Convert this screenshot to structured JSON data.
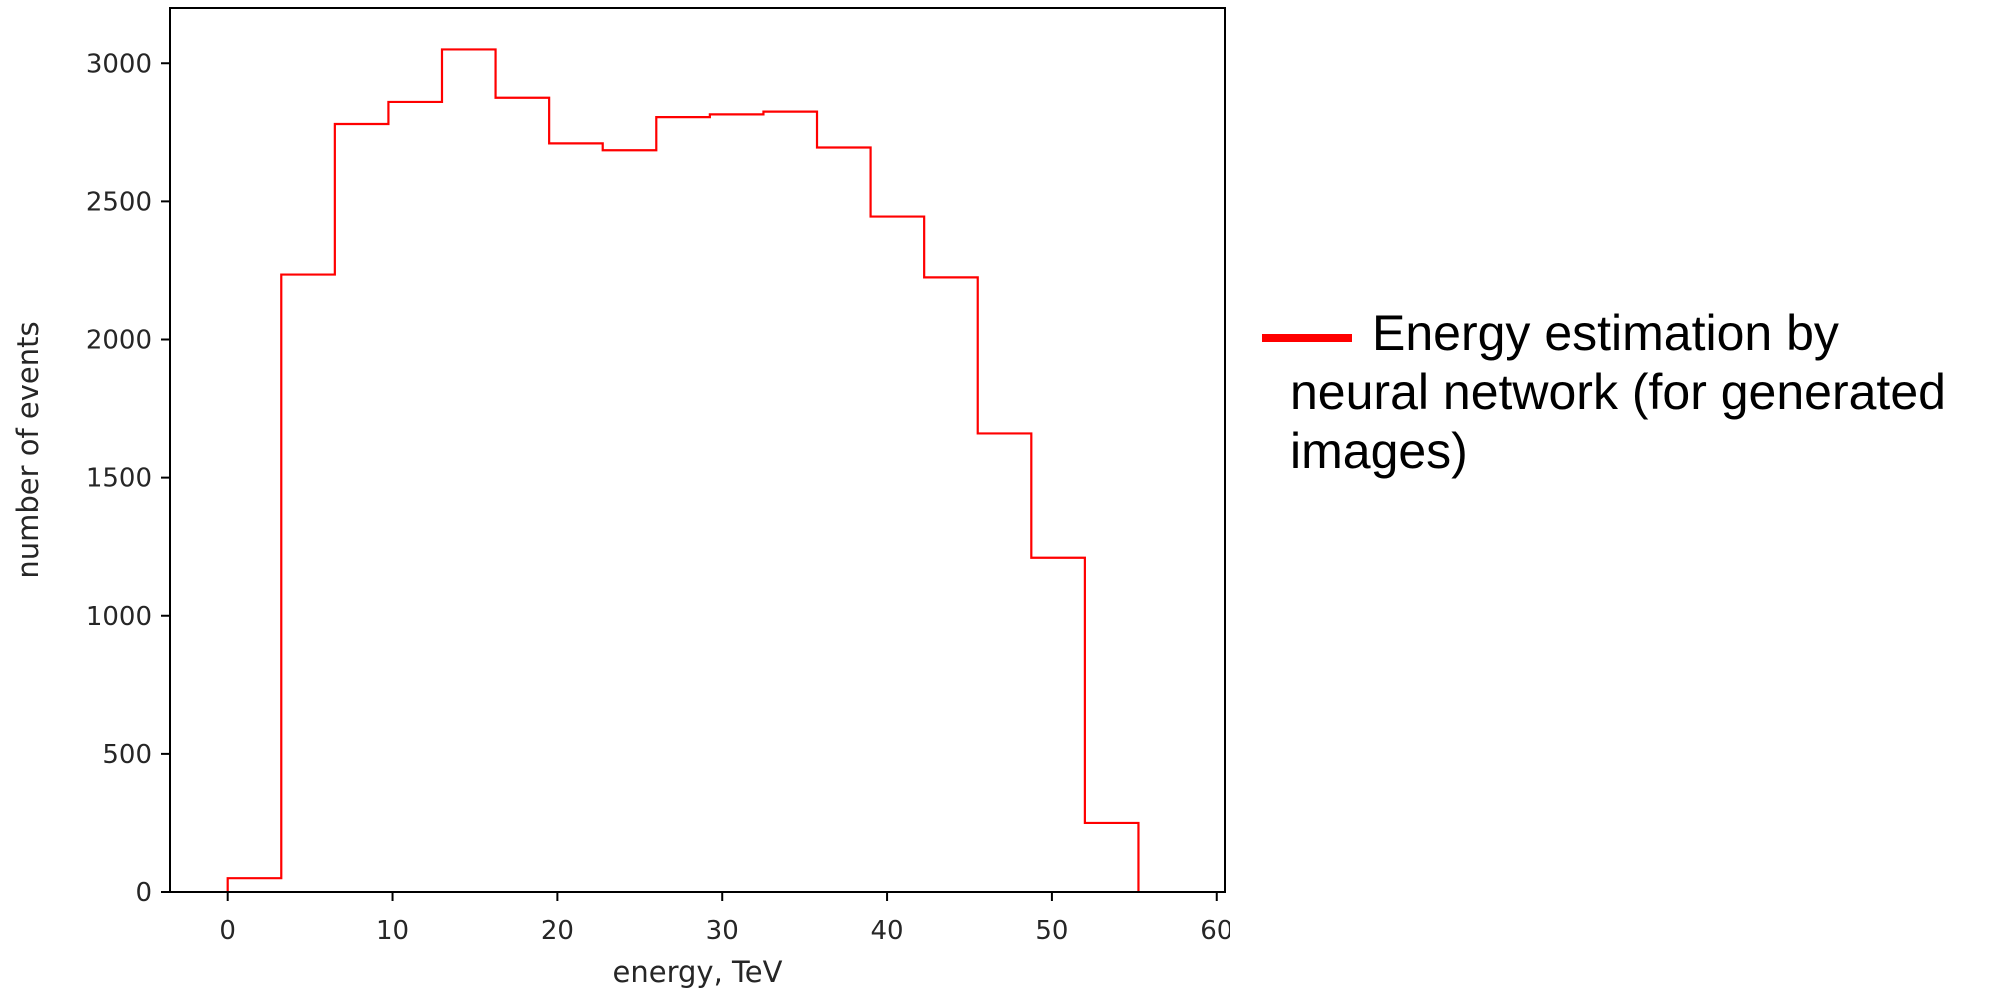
{
  "chart_data": {
    "type": "histogram",
    "title": "",
    "xlabel": "energy, TeV",
    "ylabel": "number of events",
    "xlim": [
      -3.5,
      60.5
    ],
    "ylim": [
      0,
      3200
    ],
    "xticks": [
      0,
      10,
      20,
      30,
      40,
      50,
      60
    ],
    "yticks": [
      0,
      500,
      1000,
      1500,
      2000,
      2500,
      3000
    ],
    "grid": false,
    "legend_position": "right",
    "series": [
      {
        "name": "Energy estimation by neural network (for generated images)",
        "color": "#ff0000",
        "bin_edges": [
          0,
          3.25,
          6.5,
          9.75,
          13,
          16.25,
          19.5,
          22.75,
          26,
          29.25,
          32.5,
          35.75,
          39,
          42.25,
          45.5,
          48.75,
          52,
          55.25
        ],
        "counts": [
          50,
          2235,
          2780,
          2860,
          3050,
          2875,
          2710,
          2685,
          2805,
          2815,
          2825,
          2695,
          2445,
          2225,
          1660,
          1210,
          250
        ]
      }
    ]
  }
}
